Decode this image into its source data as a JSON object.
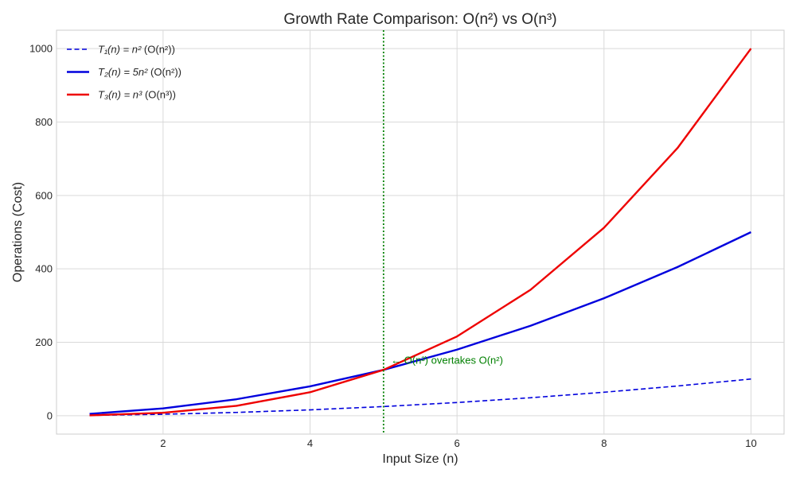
{
  "chart_data": {
    "type": "line",
    "title": "Growth Rate Comparison: O(n²) vs O(n³)",
    "xlabel": "Input Size (n)",
    "ylabel": "Operations (Cost)",
    "xlim": [
      0.55,
      10.45
    ],
    "ylim": [
      -50,
      1050
    ],
    "xticks": [
      2,
      4,
      6,
      8,
      10
    ],
    "yticks": [
      0,
      200,
      400,
      600,
      800,
      1000
    ],
    "grid": true,
    "legend_position": "top-left",
    "x": [
      1,
      2,
      3,
      4,
      5,
      6,
      7,
      8,
      9,
      10
    ],
    "series": [
      {
        "name": "T1(n) = n2 (O(n²))",
        "legend_math": "T₁(n) = n²",
        "legend_suffix": " (O(n²))",
        "values": [
          1,
          4,
          9,
          16,
          25,
          36,
          49,
          64,
          81,
          100
        ],
        "color": "#0000dd",
        "dash": true
      },
      {
        "name": "T2(n) = 5n2 (O(n²))",
        "legend_math": "T₂(n) = 5n²",
        "legend_suffix": " (O(n²))",
        "values": [
          5,
          20,
          45,
          80,
          125,
          180,
          245,
          320,
          405,
          500
        ],
        "color": "#0000dd",
        "dash": false
      },
      {
        "name": "T3(n) = n3 (O(n³))",
        "legend_math": "T₃(n) = n³",
        "legend_suffix": " (O(n³))",
        "values": [
          1,
          8,
          27,
          64,
          125,
          216,
          343,
          512,
          729,
          1000
        ],
        "color": "#ee0000",
        "dash": false
      }
    ],
    "vline": {
      "x": 5,
      "color": "#008000"
    },
    "annotation": {
      "text": "← O(n³) overtakes O(n²)",
      "x": 5.1,
      "y": 150,
      "color": "#008000"
    }
  }
}
